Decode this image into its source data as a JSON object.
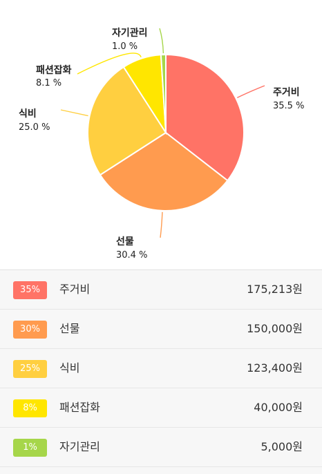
{
  "chart_data": {
    "type": "pie",
    "categories": [
      "주거비",
      "선물",
      "식비",
      "패션잡화",
      "자기관리"
    ],
    "values": [
      35.5,
      30.4,
      25.0,
      8.1,
      1.0
    ],
    "labels": [
      "35.5 %",
      "30.4 %",
      "25.0 %",
      "8.1 %",
      "1.0 %"
    ],
    "colors": [
      "#ff7366",
      "#ff9b4f",
      "#ffcf40",
      "#ffe600",
      "#a6d64a"
    ]
  },
  "list": {
    "items": [
      {
        "badge": "35%",
        "name": "주거비",
        "amount": "175,213원",
        "color": "#ff7366"
      },
      {
        "badge": "30%",
        "name": "선물",
        "amount": "150,000원",
        "color": "#ff9b4f"
      },
      {
        "badge": "25%",
        "name": "식비",
        "amount": "123,400원",
        "color": "#ffcf40"
      },
      {
        "badge": "8%",
        "name": "패션잡화",
        "amount": "40,000원",
        "color": "#ffe600"
      },
      {
        "badge": "1%",
        "name": "자기관리",
        "amount": "5,000원",
        "color": "#a6d64a"
      }
    ]
  }
}
